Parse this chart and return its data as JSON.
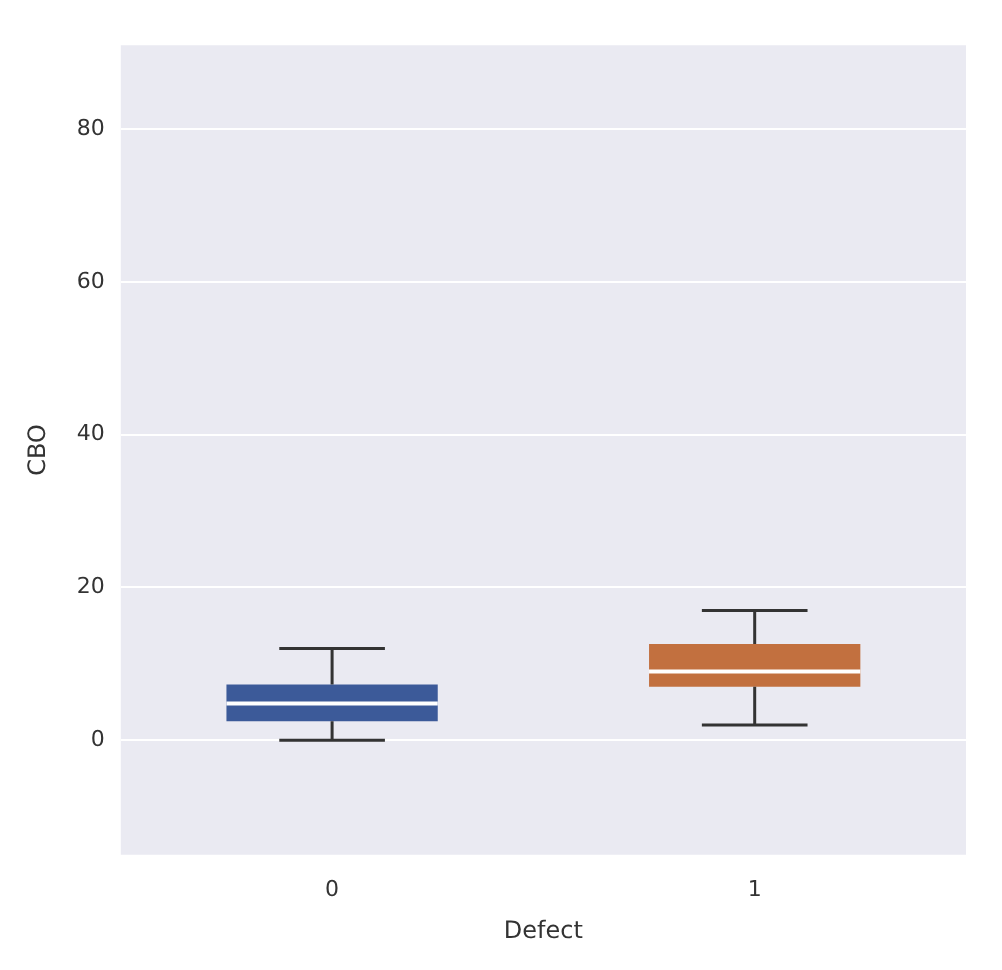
{
  "chart_data": {
    "type": "box",
    "xlabel": "Defect",
    "ylabel": "CBO",
    "categories": [
      "0",
      "1"
    ],
    "colors": [
      "#3c5a99",
      "#c2703f"
    ],
    "boxes": [
      {
        "low": 0,
        "q1": 2.5,
        "median": 4.8,
        "q3": 7.3,
        "high": 12
      },
      {
        "low": 2,
        "q1": 7,
        "median": 9,
        "q3": 12.6,
        "high": 17
      }
    ],
    "ylim": [
      -15,
      91
    ],
    "yticks": [
      0,
      20,
      40,
      60,
      80
    ],
    "grid": "y"
  }
}
